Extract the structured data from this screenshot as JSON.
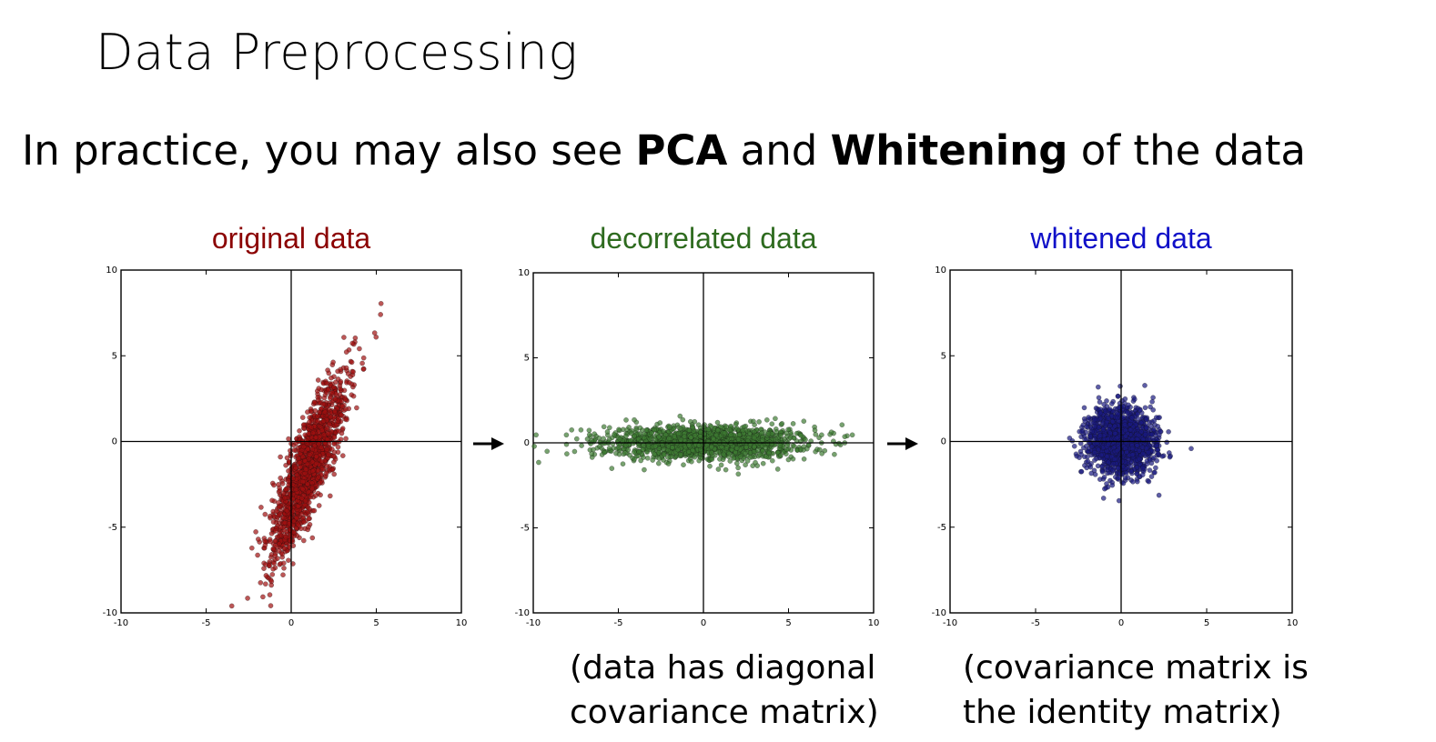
{
  "slide": {
    "title": "Data Preprocessing",
    "subtitle_parts": [
      {
        "text": "In practice, you may also see ",
        "bold": false
      },
      {
        "text": "PCA",
        "bold": true
      },
      {
        "text": " and ",
        "bold": false
      },
      {
        "text": "Whitening",
        "bold": true
      },
      {
        "text": " of the data",
        "bold": false
      }
    ],
    "caption_1": [
      "(data has diagonal",
      "covariance matrix)"
    ],
    "caption_2": [
      "(covariance matrix is",
      "the identity matrix)"
    ]
  },
  "arrows": [
    "→",
    "→"
  ],
  "chart_data": [
    {
      "type": "scatter",
      "title": "original data",
      "title_color": "#8b0000",
      "point_color": "#a01010",
      "xlim": [
        -10,
        10
      ],
      "ylim": [
        -10,
        10
      ],
      "xticks": [
        "-10",
        "-5",
        "0",
        "5",
        "10"
      ],
      "yticks": [
        "10",
        "5",
        "0",
        "-5",
        "-10"
      ],
      "distribution": {
        "center": [
          1,
          -1.5
        ],
        "major_axis_angle_deg": 70,
        "major_std": 2.9,
        "minor_std": 0.55,
        "count": 1500
      }
    },
    {
      "type": "scatter",
      "title": "decorrelated data",
      "title_color": "#2e6b1f",
      "point_color": "#3d7a32",
      "xlim": [
        -10,
        10
      ],
      "ylim": [
        -10,
        10
      ],
      "xticks": [
        "-10",
        "-5",
        "0",
        "5",
        "10"
      ],
      "yticks": [
        "10",
        "5",
        "0",
        "-5",
        "-10"
      ],
      "distribution": {
        "center": [
          0,
          0
        ],
        "major_axis_angle_deg": 0,
        "major_std": 3.0,
        "minor_std": 0.5,
        "count": 1500
      }
    },
    {
      "type": "scatter",
      "title": "whitened data",
      "title_color": "#1010c8",
      "point_color": "#1a1a80",
      "xlim": [
        -10,
        10
      ],
      "ylim": [
        -10,
        10
      ],
      "xticks": [
        "-10",
        "-5",
        "0",
        "5",
        "10"
      ],
      "yticks": [
        "10",
        "5",
        "0",
        "-5",
        "-10"
      ],
      "distribution": {
        "center": [
          0,
          0
        ],
        "major_axis_angle_deg": 0,
        "major_std": 1.0,
        "minor_std": 1.0,
        "count": 1500
      }
    }
  ]
}
